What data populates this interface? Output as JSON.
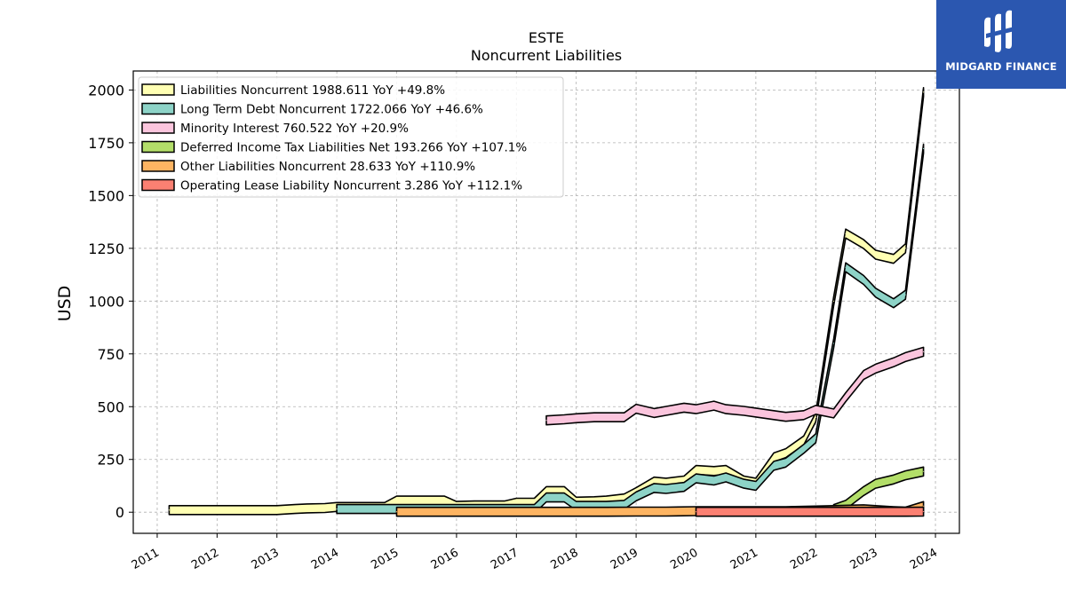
{
  "chart_data": {
    "type": "area",
    "title": "ESTE",
    "subtitle": "Noncurrent  Liabilities",
    "ylabel": "USD",
    "xlabel": "",
    "xlim": [
      2010.6,
      2024.4
    ],
    "ylim": [
      -100,
      2090
    ],
    "yticks": [
      0,
      250,
      500,
      750,
      1000,
      1250,
      1500,
      1750,
      2000
    ],
    "xticks": [
      2011,
      2012,
      2013,
      2014,
      2015,
      2016,
      2017,
      2018,
      2019,
      2020,
      2021,
      2022,
      2023,
      2024
    ],
    "grid": true,
    "legend_position": "upper-left",
    "series": [
      {
        "name": "Liabilities Noncurrent",
        "legend": "Liabilities Noncurrent  1988.611 YoY +49.8%",
        "color": "#ffffb3",
        "x": [
          2011.2,
          2011.5,
          2011.8,
          2012.0,
          2012.3,
          2012.5,
          2012.8,
          2013.0,
          2013.3,
          2013.5,
          2013.8,
          2014.0,
          2014.3,
          2014.5,
          2014.8,
          2015.0,
          2015.3,
          2015.5,
          2015.8,
          2016.0,
          2016.3,
          2016.5,
          2016.8,
          2017.0,
          2017.3,
          2017.5,
          2017.8,
          2018.0,
          2018.3,
          2018.5,
          2018.8,
          2019.0,
          2019.3,
          2019.5,
          2019.8,
          2020.0,
          2020.3,
          2020.5,
          2020.8,
          2021.0,
          2021.3,
          2021.5,
          2021.8,
          2022.0,
          2022.3,
          2022.5,
          2022.8,
          2023.0,
          2023.3,
          2023.5,
          2023.8
        ],
        "values": [
          10,
          10,
          10,
          10,
          10,
          10,
          10,
          10,
          15,
          18,
          20,
          25,
          25,
          25,
          25,
          55,
          55,
          55,
          55,
          30,
          32,
          32,
          32,
          45,
          45,
          100,
          100,
          50,
          52,
          55,
          65,
          95,
          145,
          140,
          150,
          200,
          195,
          200,
          150,
          140,
          260,
          280,
          340,
          450,
          1000,
          1320,
          1270,
          1220,
          1200,
          1250,
          1990
        ]
      },
      {
        "name": "Long Term Debt Noncurrent",
        "legend": "Long Term Debt Noncurrent  1722.066 YoY +46.6%",
        "color": "#8dd3c7",
        "x": [
          2014.0,
          2014.3,
          2014.5,
          2014.8,
          2015.0,
          2015.3,
          2015.5,
          2015.8,
          2016.0,
          2016.3,
          2016.5,
          2016.8,
          2017.0,
          2017.3,
          2017.5,
          2017.8,
          2018.0,
          2018.3,
          2018.5,
          2018.8,
          2019.0,
          2019.3,
          2019.5,
          2019.8,
          2020.0,
          2020.3,
          2020.5,
          2020.8,
          2021.0,
          2021.3,
          2021.5,
          2021.8,
          2022.0,
          2022.3,
          2022.5,
          2022.8,
          2023.0,
          2023.3,
          2023.5,
          2023.8
        ],
        "values": [
          15,
          15,
          15,
          15,
          15,
          15,
          15,
          15,
          15,
          15,
          15,
          15,
          15,
          15,
          70,
          70,
          30,
          30,
          30,
          35,
          75,
          115,
          110,
          120,
          160,
          150,
          165,
          135,
          125,
          220,
          235,
          300,
          350,
          800,
          1160,
          1100,
          1040,
          990,
          1030,
          1722
        ]
      },
      {
        "name": "Minority Interest",
        "legend": "Minority Interest  760.522 YoY +20.9%",
        "color": "#fbc5dd",
        "x": [
          2017.5,
          2017.8,
          2018.0,
          2018.3,
          2018.5,
          2018.8,
          2019.0,
          2019.3,
          2019.5,
          2019.8,
          2020.0,
          2020.3,
          2020.5,
          2020.8,
          2021.0,
          2021.3,
          2021.5,
          2021.8,
          2022.0,
          2022.3,
          2022.5,
          2022.8,
          2023.0,
          2023.3,
          2023.5,
          2023.8
        ],
        "values": [
          435,
          440,
          445,
          450,
          450,
          450,
          490,
          470,
          480,
          495,
          488,
          505,
          488,
          480,
          472,
          460,
          452,
          460,
          485,
          468,
          545,
          650,
          680,
          710,
          735,
          760
        ]
      },
      {
        "name": "Deferred Income Tax Liabilities Net",
        "legend": "Deferred Income Tax Liabilities Net  193.266 YoY +107.1%",
        "color": "#b3de69",
        "x": [
          2022.3,
          2022.5,
          2022.8,
          2023.0,
          2023.3,
          2023.5,
          2023.8
        ],
        "values": [
          15,
          35,
          100,
          135,
          155,
          175,
          193
        ]
      },
      {
        "name": "Other Liabilities Noncurrent",
        "legend": "Other Liabilities Noncurrent  28.633 YoY +110.9%",
        "color": "#fdb462",
        "x": [
          2015.0,
          2015.5,
          2016.0,
          2016.5,
          2017.0,
          2017.5,
          2018.0,
          2018.5,
          2019.0,
          2019.5,
          2020.0,
          2020.5,
          2021.0,
          2021.5,
          2022.0,
          2022.3,
          2022.5,
          2022.8,
          2023.0,
          2023.3,
          2023.5,
          2023.8
        ],
        "values": [
          2,
          2,
          2,
          2,
          2,
          2,
          2,
          2,
          3,
          3,
          5,
          5,
          5,
          5,
          8,
          10,
          12,
          14,
          10,
          5,
          3,
          29
        ]
      },
      {
        "name": "Operating Lease Liability Noncurrent",
        "legend": "Operating Lease Liability Noncurrent  3.286 YoY +112.1%",
        "color": "#fb8072",
        "x": [
          2020.0,
          2020.5,
          2021.0,
          2021.5,
          2022.0,
          2022.5,
          2023.0,
          2023.5,
          2023.8
        ],
        "values": [
          2,
          2,
          2,
          2,
          2,
          2,
          2,
          2,
          3
        ]
      }
    ]
  },
  "brand": {
    "name": "MIDGARD FINANCE",
    "bg_color": "#2b57b0",
    "icon": "midgard-logo-icon"
  }
}
